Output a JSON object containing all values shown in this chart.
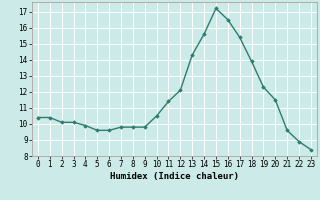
{
  "x": [
    0,
    1,
    2,
    3,
    4,
    5,
    6,
    7,
    8,
    9,
    10,
    11,
    12,
    13,
    14,
    15,
    16,
    17,
    18,
    19,
    20,
    21,
    22,
    23
  ],
  "y": [
    10.4,
    10.4,
    10.1,
    10.1,
    9.9,
    9.6,
    9.6,
    9.8,
    9.8,
    9.8,
    10.5,
    11.4,
    12.1,
    14.3,
    15.6,
    17.2,
    16.5,
    15.4,
    13.9,
    12.3,
    11.5,
    9.6,
    8.9,
    8.4
  ],
  "line_color": "#2d7d6e",
  "marker": "D",
  "marker_size": 1.8,
  "bg_color": "#cceae8",
  "grid_color": "#ffffff",
  "grid_minor_color": "#ddeeed",
  "xlabel": "Humidex (Indice chaleur)",
  "ylim": [
    8,
    17.6
  ],
  "xlim": [
    -0.5,
    23.5
  ],
  "yticks": [
    8,
    9,
    10,
    11,
    12,
    13,
    14,
    15,
    16,
    17
  ],
  "xticks": [
    0,
    1,
    2,
    3,
    4,
    5,
    6,
    7,
    8,
    9,
    10,
    11,
    12,
    13,
    14,
    15,
    16,
    17,
    18,
    19,
    20,
    21,
    22,
    23
  ],
  "xlabel_fontsize": 6.5,
  "tick_fontsize": 5.5,
  "line_width": 1.0
}
